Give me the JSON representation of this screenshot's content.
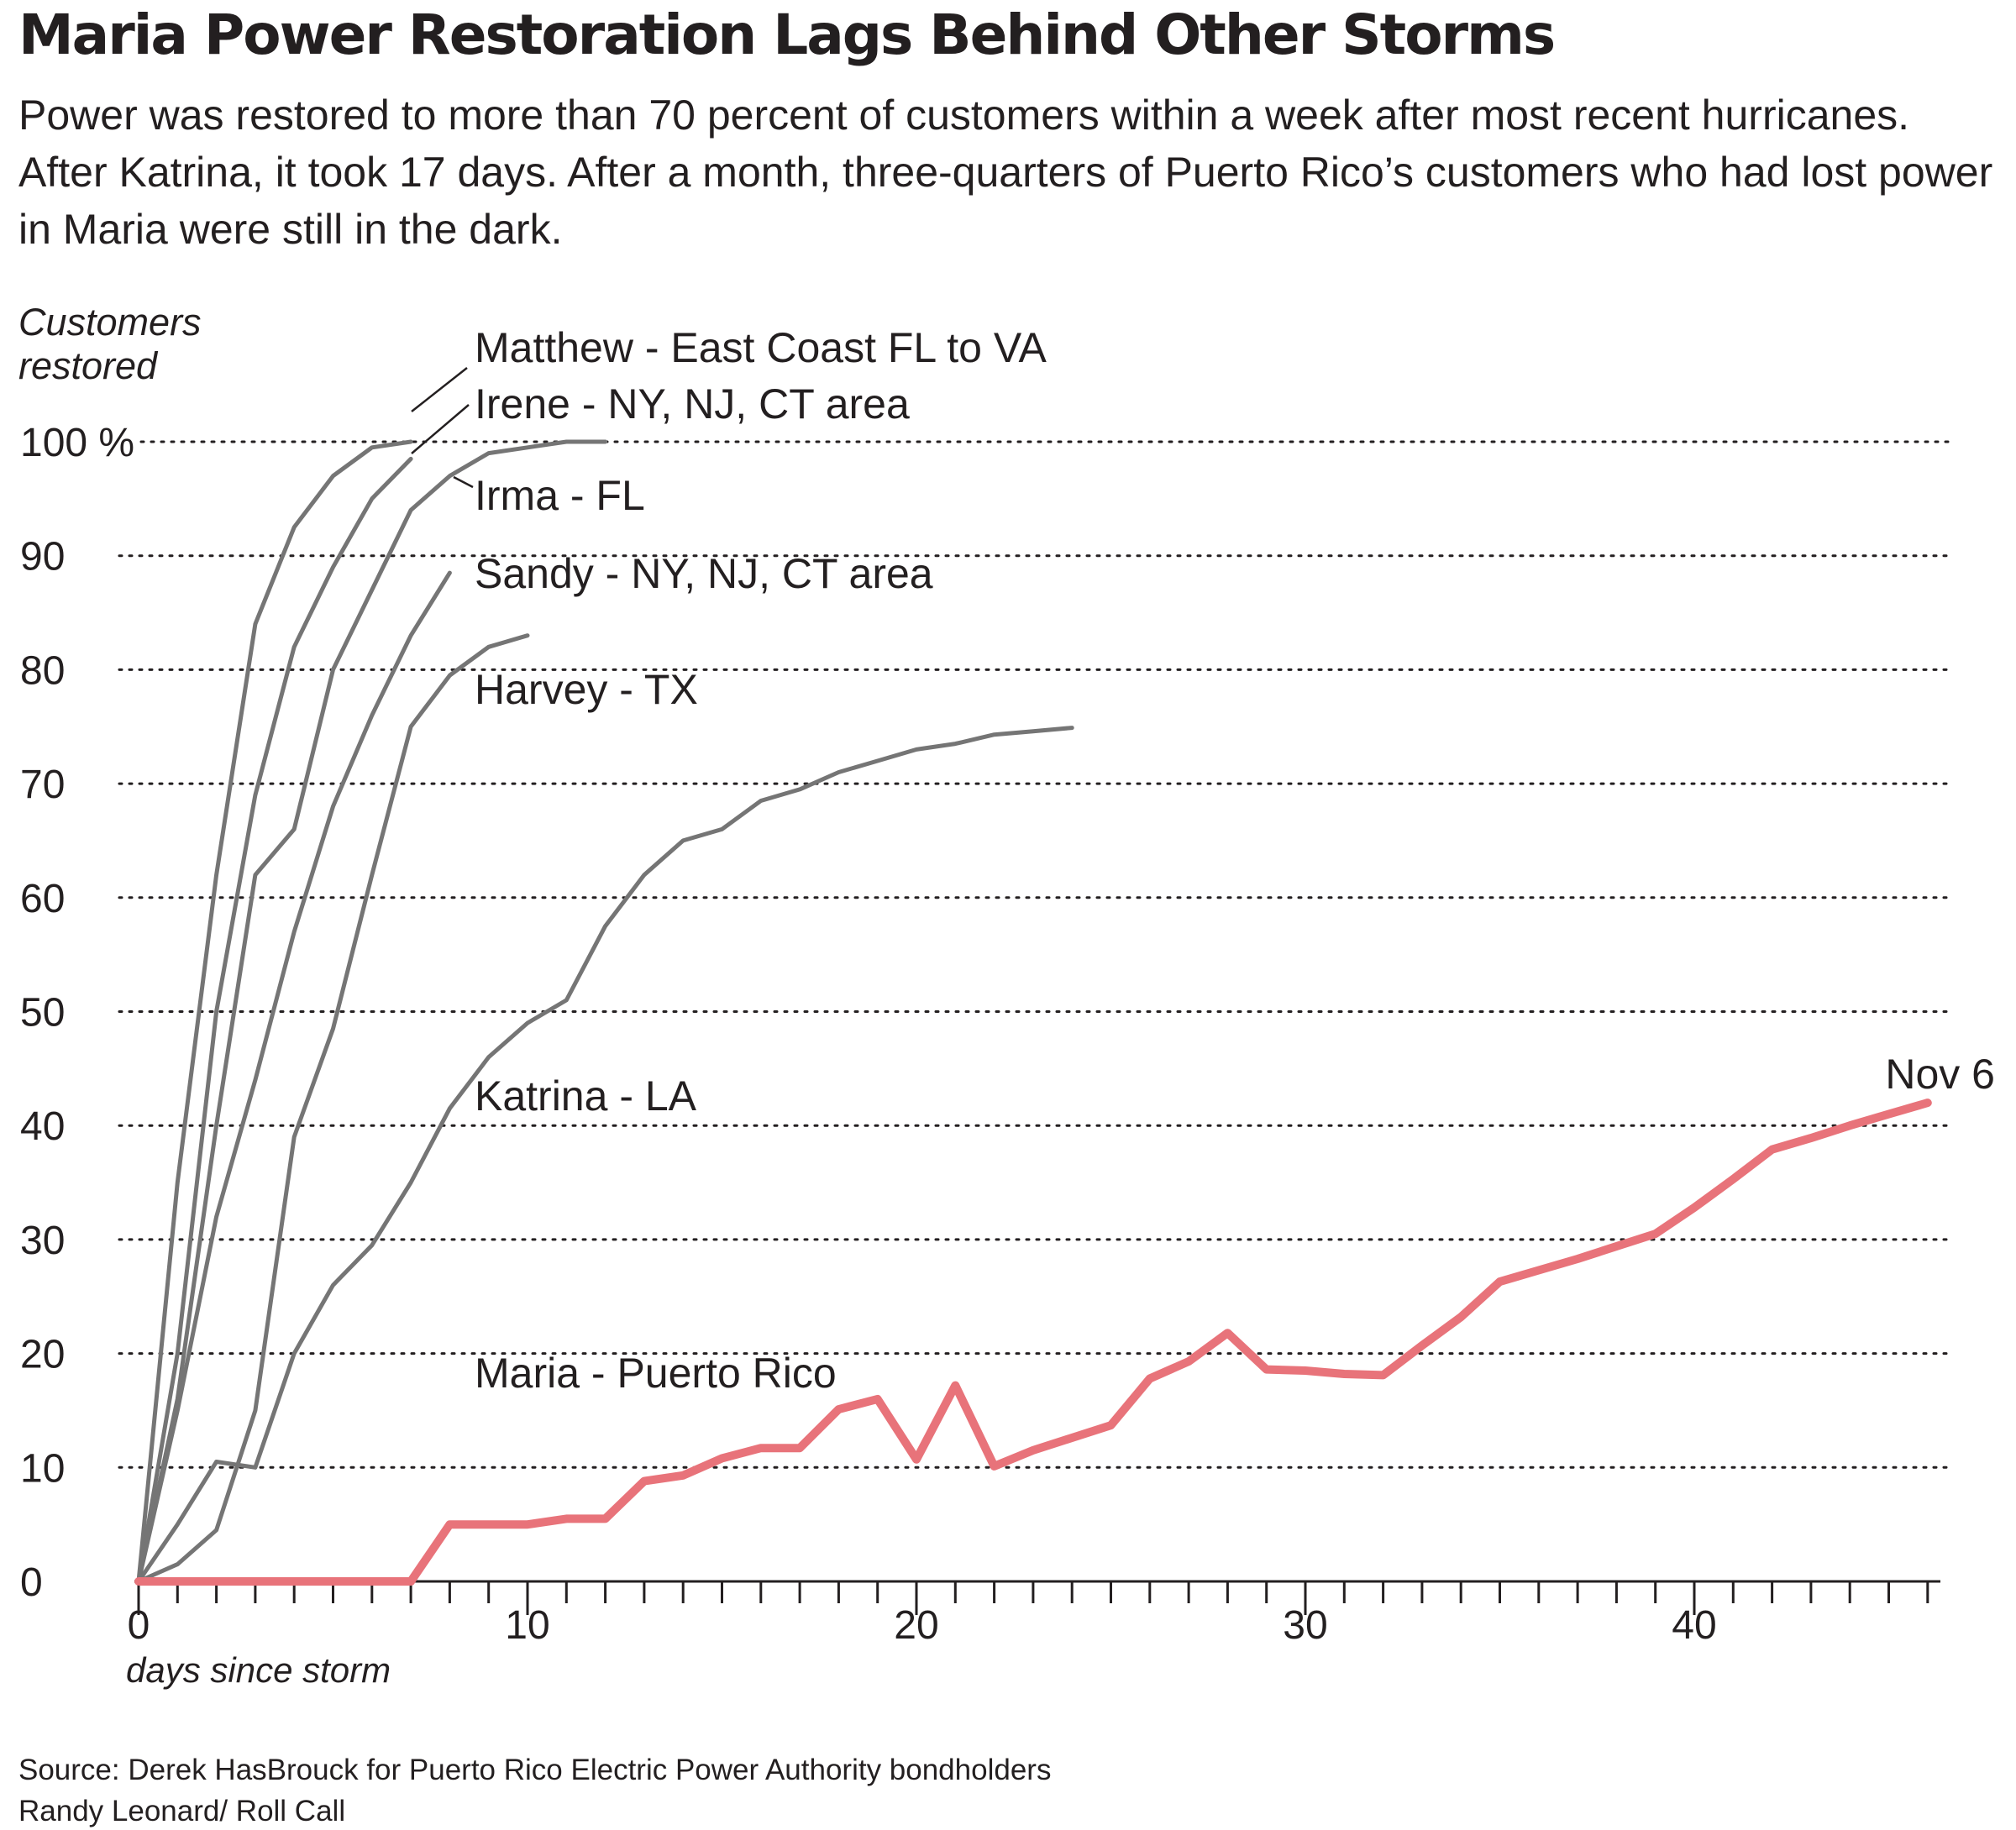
{
  "header": {
    "title": "Maria Power Restoration Lags Behind Other Storms",
    "subtitle": "Power was restored to more than 70 percent of customers within a week after most recent hurricanes. After Katrina, it took 17 days. After a month, three-quarters of Puerto Rico’s customers who had lost power in Maria were still in the dark."
  },
  "footer": {
    "source": "Source: Derek HasBrouck for Puerto Rico Electric Power Authority bondholders",
    "credit": "Randy Leonard/ Roll Call"
  },
  "chart_data": {
    "type": "line",
    "ylabel_lines": [
      "Customers",
      "restored"
    ],
    "xlabel": "days since storm",
    "xlim": [
      0,
      46
    ],
    "ylim": [
      0,
      100
    ],
    "y_ticks": [
      0,
      10,
      20,
      30,
      40,
      50,
      60,
      70,
      80,
      90,
      100
    ],
    "y_tick_labels": [
      "0",
      "10",
      "20",
      "30",
      "40",
      "50",
      "60",
      "70",
      "80",
      "90",
      "100 %"
    ],
    "x_ticks_labeled": [
      0,
      10,
      20,
      30,
      40
    ],
    "x_tick_labels": [
      "0",
      "10",
      "20",
      "30",
      "40"
    ],
    "grid": "horizontal dotted",
    "colors": {
      "storm": "#757575",
      "maria": "#e8737a",
      "grid": "#231f20",
      "text": "#231f20"
    },
    "series": [
      {
        "name": "Matthew - East Coast FL to VA",
        "x": [
          0,
          1,
          2,
          3,
          4,
          5,
          6,
          7
        ],
        "y": [
          0,
          35,
          62,
          84,
          92.5,
          97,
          99.5,
          100
        ]
      },
      {
        "name": "Irene - NY, NJ, CT area",
        "x": [
          0,
          1,
          2,
          3,
          4,
          5,
          6,
          7
        ],
        "y": [
          0,
          20,
          50,
          69,
          82,
          89,
          95,
          98.5
        ]
      },
      {
        "name": "Irma - FL",
        "x": [
          0,
          1,
          2,
          3,
          4,
          5,
          6,
          7,
          8,
          9,
          10,
          11,
          12
        ],
        "y": [
          0,
          16,
          40,
          62,
          66,
          80,
          87,
          94,
          97,
          99,
          99.5,
          100,
          100
        ]
      },
      {
        "name": "Sandy - NY, NJ, CT area",
        "x": [
          0,
          1,
          2,
          3,
          4,
          5,
          6,
          7,
          8
        ],
        "y": [
          0,
          15,
          32,
          44,
          57,
          68,
          76,
          83,
          88.5
        ]
      },
      {
        "name": "Harvey - TX",
        "x": [
          0,
          1,
          2,
          3,
          4,
          5,
          6,
          7,
          8,
          9,
          10
        ],
        "y": [
          0,
          1.5,
          4.5,
          15,
          39,
          48.5,
          62,
          75,
          79.5,
          82,
          83
        ]
      },
      {
        "name": "Katrina - LA",
        "x": [
          0,
          1,
          2,
          3,
          4,
          5,
          6,
          7,
          8,
          9,
          10,
          11,
          12,
          13,
          14,
          15,
          16,
          17,
          18,
          19,
          20,
          21,
          22,
          23,
          24
        ],
        "y": [
          0,
          5,
          10.5,
          10,
          20,
          26,
          29.5,
          35,
          41.5,
          46,
          49,
          51,
          57.5,
          62,
          65,
          66,
          68.5,
          69.5,
          71,
          72,
          73,
          73.5,
          74.3,
          74.6,
          74.9
        ]
      },
      {
        "name": "Maria - Puerto Rico",
        "x": [
          0,
          7,
          8,
          9,
          10,
          11,
          12,
          13,
          14,
          15,
          16,
          17,
          18,
          19,
          20,
          21,
          22,
          23,
          24,
          25,
          26,
          27,
          28,
          29,
          30,
          31,
          32,
          33,
          34,
          35,
          36,
          37,
          38,
          39,
          40,
          41,
          42,
          43,
          44,
          45,
          46
        ],
        "y": [
          0,
          0,
          5,
          5,
          5,
          5.5,
          5.5,
          8.8,
          9.3,
          10.8,
          11.7,
          11.7,
          15.1,
          16,
          10.7,
          17.2,
          10.1,
          11.5,
          12.6,
          13.7,
          17.8,
          19.3,
          21.8,
          18.6,
          18.5,
          18.2,
          18.1,
          20.7,
          23.2,
          26.3,
          27.3,
          28.3,
          29.4,
          30.5,
          32.8,
          35.3,
          37.9,
          38.9,
          40.0,
          41.0,
          42.0
        ]
      }
    ],
    "series_labels": [
      "Matthew - East Coast FL to VA",
      "Irene - NY, NJ, CT area",
      "Irma - FL",
      "Sandy - NY, NJ, CT area",
      "Harvey - TX",
      "Katrina - LA",
      "Maria - Puerto Rico"
    ],
    "annotation": "Nov 6"
  }
}
